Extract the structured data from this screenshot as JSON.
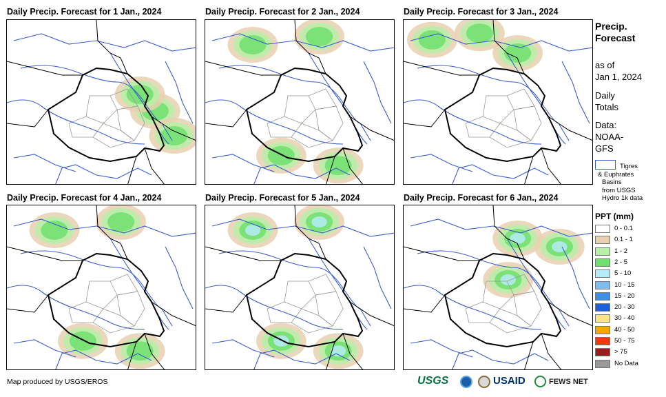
{
  "panels": [
    {
      "title": "Daily Precip. Forecast for 1 Jan., 2024",
      "level": 1,
      "zone": "southeast"
    },
    {
      "title": "Daily Precip. Forecast for 2 Jan., 2024",
      "level": 1,
      "zone": "north-south"
    },
    {
      "title": "Daily Precip. Forecast for 3 Jan., 2024",
      "level": 1,
      "zone": "north"
    },
    {
      "title": "Daily Precip. Forecast for 4 Jan., 2024",
      "level": 1,
      "zone": "north-south"
    },
    {
      "title": "Daily Precip. Forecast for 5 Jan., 2024",
      "level": 3,
      "zone": "north-south"
    },
    {
      "title": "Daily Precip. Forecast for 6 Jan., 2024",
      "level": 3,
      "zone": "northeast"
    }
  ],
  "side": {
    "title_line1": "Precip.",
    "title_line2": "Forecast",
    "asof_line1": "as of",
    "asof_line2": "Jan 1, 2024",
    "daily_line1": "Daily",
    "daily_line2": "Totals",
    "data_line1": "Data:",
    "data_line2": "NOAA-",
    "data_line3": "GFS"
  },
  "basin_legend": {
    "line1": "Tigres",
    "line2": "& Euphrates",
    "line3": "Basins",
    "line4": "from USGS",
    "line5": "Hydro 1k data"
  },
  "legend": {
    "title": "PPT (mm)",
    "items": [
      {
        "label": "0 - 0.1",
        "color": "#ffffff"
      },
      {
        "label": "0.1 - 1",
        "color": "#e8d1b0"
      },
      {
        "label": "1 - 2",
        "color": "#b7f0a8"
      },
      {
        "label": "2 - 5",
        "color": "#6fe06f"
      },
      {
        "label": "5 - 10",
        "color": "#b5ecf7"
      },
      {
        "label": "10 - 15",
        "color": "#7fbcf0"
      },
      {
        "label": "15 - 20",
        "color": "#3f8fe8"
      },
      {
        "label": "20 - 30",
        "color": "#1c5fd8"
      },
      {
        "label": "30 - 40",
        "color": "#fce388"
      },
      {
        "label": "40 - 50",
        "color": "#f7a800"
      },
      {
        "label": "50 - 75",
        "color": "#ee3a10"
      },
      {
        "label": "> 75",
        "color": "#a01c1c"
      },
      {
        "label": "No Data",
        "color": "#999999"
      }
    ]
  },
  "footer": {
    "credit": "Map produced by USGS/EROS",
    "logos": [
      "USGS",
      "NOAA",
      "DOI",
      "USAID",
      "FEWS NET"
    ]
  },
  "colors": {
    "border": "#000000",
    "river": "#3a5fcd",
    "province": "#999999"
  }
}
